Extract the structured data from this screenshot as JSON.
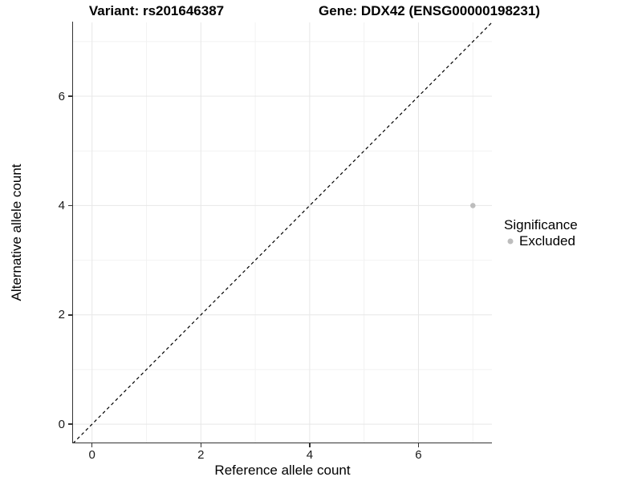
{
  "chart_data": {
    "type": "scatter",
    "title_left": "Variant: rs201646387",
    "title_right": "Gene: DDX42 (ENSG00000198231)",
    "xlabel": "Reference allele count",
    "ylabel": "Alternative allele count",
    "xlim": [
      -0.35,
      7.35
    ],
    "ylim": [
      -0.35,
      7.35
    ],
    "x_ticks": [
      0,
      2,
      4,
      6
    ],
    "y_ticks": [
      0,
      2,
      4,
      6
    ],
    "x_minor_gridlines": [
      1,
      3,
      5,
      7
    ],
    "y_minor_gridlines": [
      1,
      3,
      5,
      7
    ],
    "points": [
      {
        "x": 7,
        "y": 4,
        "significance": "Excluded"
      }
    ],
    "identity_line": {
      "slope": 1,
      "intercept": 0,
      "style": "dashed",
      "color": "#000000"
    },
    "legend": {
      "title": "Significance",
      "position": "right",
      "entries": [
        {
          "label": "Excluded",
          "color": "#bdbdbd"
        }
      ]
    },
    "grid": true,
    "colors": {
      "point": "#bdbdbd",
      "grid_major": "#e7e7e7",
      "grid_minor": "#f2f2f2",
      "axis_line": "#333333"
    }
  }
}
